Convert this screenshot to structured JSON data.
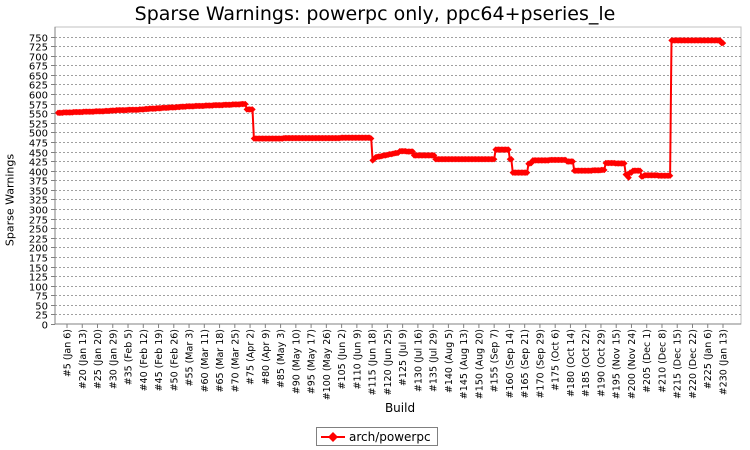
{
  "chart_data": {
    "type": "line",
    "title": "Sparse Warnings: powerpc only, ppc64+pseries_le",
    "xlabel": "Build",
    "ylabel": "Sparse Warnings",
    "ylim": [
      0,
      775
    ],
    "yticks": [
      0,
      25,
      50,
      75,
      100,
      125,
      150,
      175,
      200,
      225,
      250,
      275,
      300,
      325,
      350,
      375,
      400,
      425,
      450,
      475,
      500,
      525,
      550,
      575,
      600,
      625,
      650,
      675,
      700,
      725,
      750
    ],
    "grid": true,
    "legend": "bottom-center",
    "x_tick_labels": [
      "#5 (Jan 6)",
      "#20 (Jan 13)",
      "#25 (Jan 20)",
      "#30 (Jan 29)",
      "#35 (Feb 5)",
      "#40 (Feb 12)",
      "#45 (Feb 19)",
      "#50 (Feb 26)",
      "#55 (Mar 3)",
      "#60 (Mar 11)",
      "#65 (Mar 18)",
      "#70 (Mar 25)",
      "#75 (Apr 2)",
      "#80 (Apr 9)",
      "#85 (May 3)",
      "#90 (May 10)",
      "#95 (May 17)",
      "#100 (May 26)",
      "#105 (Jun 2)",
      "#110 (Jun 9)",
      "#115 (Jun 18)",
      "#120 (Jun 25)",
      "#125 (Jul 9)",
      "#130 (Jul 16)",
      "#135 (Jul 29)",
      "#140 (Aug 5)",
      "#145 (Aug 13)",
      "#150 (Aug 20)",
      "#155 (Sep 7)",
      "#160 (Sep 14)",
      "#165 (Sep 21)",
      "#170 (Sep 29)",
      "#175 (Oct 6)",
      "#180 (Oct 14)",
      "#185 (Oct 22)",
      "#190 (Oct 29)",
      "#195 (Nov 15)",
      "#200 (Nov 24)",
      "#205 (Dec 1)",
      "#210 (Dec 8)",
      "#215 (Dec 15)",
      "#220 (Dec 22)",
      "#225 (Jan 6)",
      "#230 (Jan 13)"
    ],
    "series": [
      {
        "name": "arch/powerpc",
        "color": "#ff0000",
        "marker": "diamond",
        "segments": [
          {
            "from": 0,
            "to": 36,
            "start": 551,
            "end": 556
          },
          {
            "from": 37,
            "to": 60,
            "start": 557,
            "end": 560
          },
          {
            "from": 61,
            "to": 85,
            "start": 561,
            "end": 566
          },
          {
            "from": 86,
            "to": 112,
            "start": 567,
            "end": 571
          },
          {
            "from": 113,
            "to": 131,
            "start": 571,
            "end": 574
          },
          {
            "from": 132,
            "to": 136,
            "start": 560,
            "end": 560
          },
          {
            "from": 137,
            "to": 218,
            "start": 484,
            "end": 486
          },
          {
            "from": 219,
            "to": 219,
            "start": 484,
            "end": 484
          },
          {
            "from": 220,
            "to": 221,
            "start": 427,
            "end": 430
          },
          {
            "from": 222,
            "to": 238,
            "start": 435,
            "end": 447
          },
          {
            "from": 239,
            "to": 248,
            "start": 451,
            "end": 450
          },
          {
            "from": 249,
            "to": 263,
            "start": 440,
            "end": 440
          },
          {
            "from": 264,
            "to": 305,
            "start": 430,
            "end": 430
          },
          {
            "from": 306,
            "to": 315,
            "start": 455,
            "end": 455
          },
          {
            "from": 316,
            "to": 317,
            "start": 430,
            "end": 430
          },
          {
            "from": 318,
            "to": 328,
            "start": 395,
            "end": 395
          },
          {
            "from": 329,
            "to": 331,
            "start": 418,
            "end": 420
          },
          {
            "from": 332,
            "to": 355,
            "start": 427,
            "end": 428
          },
          {
            "from": 356,
            "to": 360,
            "start": 424,
            "end": 424
          },
          {
            "from": 361,
            "to": 370,
            "start": 400,
            "end": 400
          },
          {
            "from": 371,
            "to": 382,
            "start": 400,
            "end": 402
          },
          {
            "from": 383,
            "to": 396,
            "start": 420,
            "end": 419
          },
          {
            "from": 397,
            "to": 398,
            "start": 390,
            "end": 390
          },
          {
            "from": 399,
            "to": 399,
            "start": 382,
            "end": 382
          },
          {
            "from": 400,
            "to": 401,
            "start": 395,
            "end": 395
          },
          {
            "from": 402,
            "to": 407,
            "start": 400,
            "end": 400
          },
          {
            "from": 408,
            "to": 409,
            "start": 385,
            "end": 385
          },
          {
            "from": 410,
            "to": 428,
            "start": 388,
            "end": 387
          },
          {
            "from": 429,
            "to": 463,
            "start": 740,
            "end": 740
          },
          {
            "from": 464,
            "to": 465,
            "start": 733,
            "end": 733
          }
        ]
      }
    ]
  }
}
